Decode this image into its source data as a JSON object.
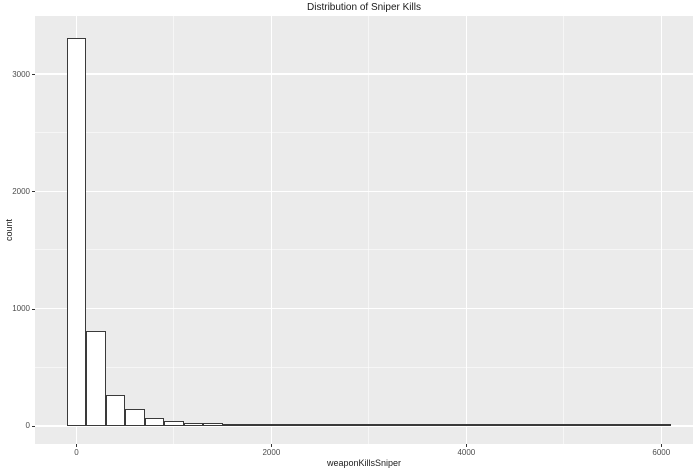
{
  "title": "Distribution of Sniper Kills",
  "chart_data": {
    "type": "bar",
    "subtype": "histogram",
    "title": "Distribution of Sniper Kills",
    "xlabel": "weaponKillsSniper",
    "ylabel": "count",
    "legend": "none",
    "grid": "major+minor",
    "bin_width": 200,
    "bin_centers": [
      0,
      200,
      400,
      600,
      800,
      1000,
      1200,
      1400,
      1600,
      1800,
      2000,
      2200,
      2400,
      2600,
      2800,
      3000,
      3200,
      3400,
      3600,
      3800,
      4000,
      4200,
      4400,
      4600,
      4800,
      5000,
      5200,
      5400,
      5600,
      5800,
      6000
    ],
    "counts": [
      3310,
      805,
      265,
      140,
      65,
      45,
      28,
      25,
      17,
      10,
      5,
      5,
      8,
      8,
      3,
      8,
      9,
      9,
      9,
      7,
      2,
      2,
      3,
      2,
      2,
      3,
      2,
      2,
      2,
      2,
      2
    ],
    "x_ticks": [
      0,
      2000,
      4000,
      6000
    ],
    "x_minor_ticks": [
      1000,
      3000,
      5000
    ],
    "y_ticks": [
      0,
      1000,
      2000,
      3000
    ],
    "y_minor_ticks": [
      500,
      1500,
      2500
    ],
    "xlim": [
      -425,
      6325
    ],
    "ylim": [
      -155,
      3495
    ],
    "style": {
      "panel_bg": "#ebebeb",
      "grid_color": "#ffffff",
      "bar_fill": "#ffffff",
      "bar_border": "#3a3a3a",
      "tick_label_color": "#4d4d4d",
      "text_color": "#1a1a1a"
    }
  }
}
